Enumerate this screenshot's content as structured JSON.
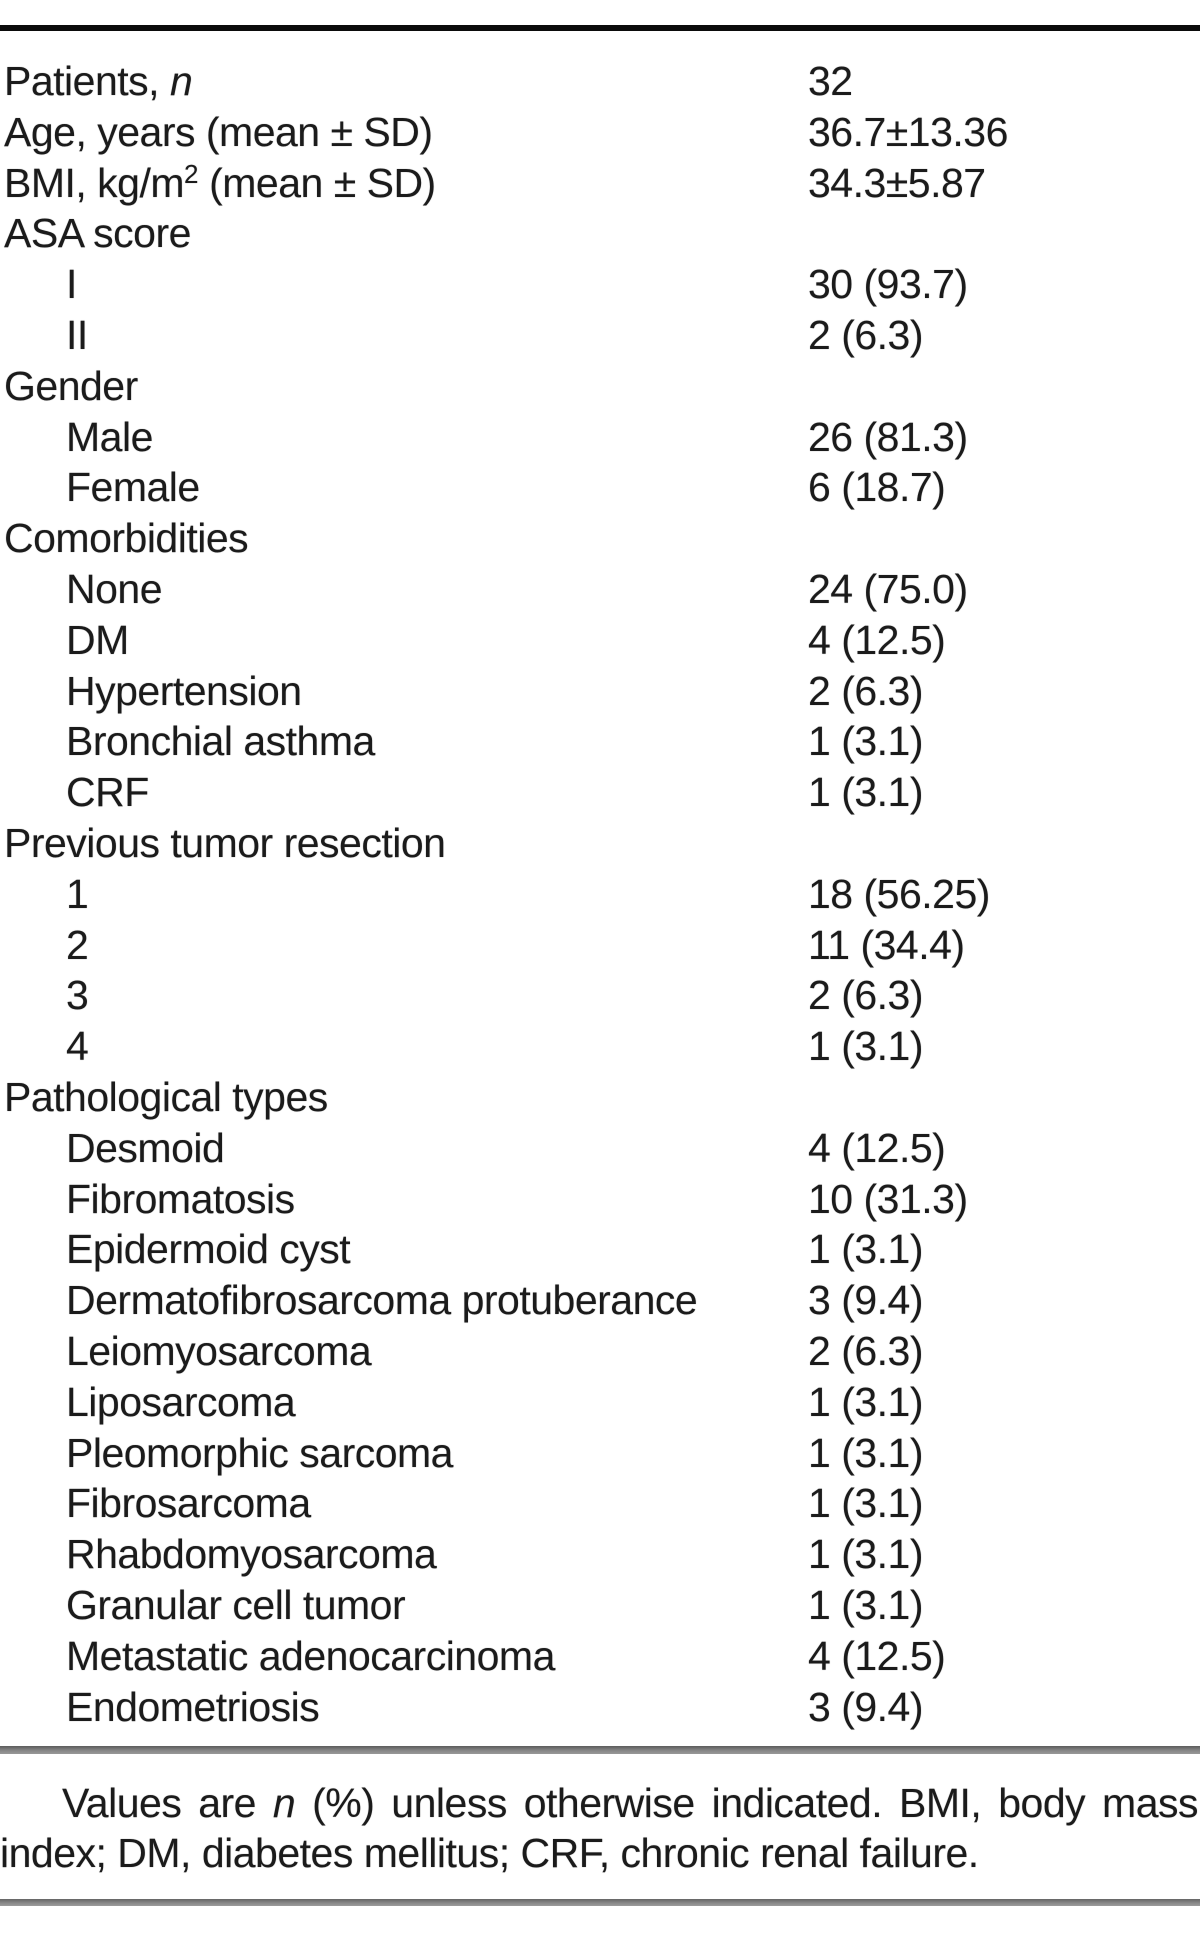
{
  "colors": {
    "background": "#ffffff",
    "text": "#1b1b1b",
    "top_rule": "#0b0b0b",
    "section_rule": "#8a8a8a"
  },
  "table": {
    "rows": [
      {
        "label": "Patients, n",
        "label_parts": [
          {
            "text": "Patients, "
          },
          {
            "text": "n",
            "style": "italic"
          }
        ],
        "value": "32",
        "indent": false
      },
      {
        "label": "Age, years (mean ± SD)",
        "value": "36.7±13.36",
        "indent": false
      },
      {
        "label": "BMI, kg/m2 (mean ± SD)",
        "label_parts": [
          {
            "text": "BMI, kg/m"
          },
          {
            "text": "2",
            "style": "sup"
          },
          {
            "text": " (mean ± SD)"
          }
        ],
        "value": "34.3±5.87",
        "indent": false
      },
      {
        "label": "ASA score",
        "value": "",
        "indent": false
      },
      {
        "label": "I",
        "value": "30 (93.7)",
        "indent": true
      },
      {
        "label": "II",
        "value": "2 (6.3)",
        "indent": true
      },
      {
        "label": "Gender",
        "value": "",
        "indent": false
      },
      {
        "label": "Male",
        "value": "26 (81.3)",
        "indent": true
      },
      {
        "label": "Female",
        "value": "6 (18.7)",
        "indent": true
      },
      {
        "label": "Comorbidities",
        "value": "",
        "indent": false
      },
      {
        "label": "None",
        "value": "24 (75.0)",
        "indent": true
      },
      {
        "label": "DM",
        "value": "4 (12.5)",
        "indent": true
      },
      {
        "label": "Hypertension",
        "value": "2 (6.3)",
        "indent": true
      },
      {
        "label": "Bronchial asthma",
        "value": "1 (3.1)",
        "indent": true
      },
      {
        "label": "CRF",
        "value": "1 (3.1)",
        "indent": true
      },
      {
        "label": "Previous tumor resection",
        "value": "",
        "indent": false
      },
      {
        "label": "1",
        "value": "18 (56.25)",
        "indent": true
      },
      {
        "label": "2",
        "value": "11 (34.4)",
        "indent": true
      },
      {
        "label": "3",
        "value": "2 (6.3)",
        "indent": true
      },
      {
        "label": "4",
        "value": "1 (3.1)",
        "indent": true
      },
      {
        "label": "Pathological types",
        "value": "",
        "indent": false
      },
      {
        "label": "Desmoid",
        "value": "4 (12.5)",
        "indent": true
      },
      {
        "label": "Fibromatosis",
        "value": "10 (31.3)",
        "indent": true
      },
      {
        "label": "Epidermoid cyst",
        "value": "1 (3.1)",
        "indent": true
      },
      {
        "label": "Dermatofibrosarcoma protuberance",
        "value": "3 (9.4)",
        "indent": true
      },
      {
        "label": "Leiomyosarcoma",
        "value": "2 (6.3)",
        "indent": true
      },
      {
        "label": "Liposarcoma",
        "value": "1 (3.1)",
        "indent": true
      },
      {
        "label": "Pleomorphic sarcoma",
        "value": "1 (3.1)",
        "indent": true
      },
      {
        "label": "Fibrosarcoma",
        "value": "1 (3.1)",
        "indent": true
      },
      {
        "label": "Rhabdomyosarcoma",
        "value": "1 (3.1)",
        "indent": true
      },
      {
        "label": "Granular cell tumor",
        "value": "1 (3.1)",
        "indent": true
      },
      {
        "label": "Metastatic adenocarcinoma",
        "value": "4 (12.5)",
        "indent": true
      },
      {
        "label": "Endometriosis",
        "value": "3 (9.4)",
        "indent": true
      }
    ]
  },
  "footnote": {
    "line1": "Values are n (%) unless otherwise indicated. BMI, body mass",
    "line1_parts": [
      {
        "text": "Values are "
      },
      {
        "text": "n",
        "style": "italic"
      },
      {
        "text": " (%) unless otherwise indicated. BMI, body mass"
      }
    ],
    "line2": "index; DM, diabetes mellitus; CRF, chronic renal failure."
  }
}
